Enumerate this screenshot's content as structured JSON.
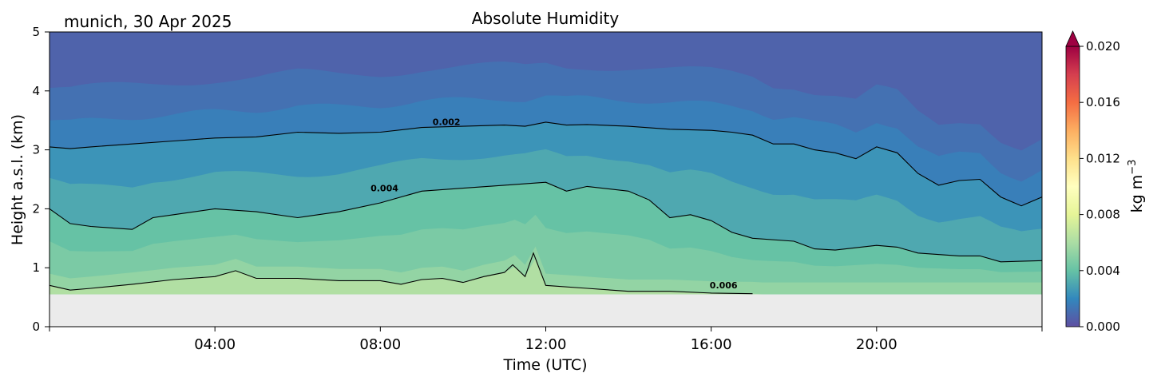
{
  "chart_data": {
    "type": "heatmap",
    "title": "Absolute Humidity",
    "subtitle": "munich, 30 Apr 2025",
    "xlabel": "Time (UTC)",
    "ylabel": "Height a.s.l. (km)",
    "xlim": [
      0,
      24
    ],
    "ylim": [
      0,
      5
    ],
    "x_ticks": [
      {
        "value": 4,
        "label": "04:00"
      },
      {
        "value": 8,
        "label": "08:00"
      },
      {
        "value": 12,
        "label": "12:00"
      },
      {
        "value": 16,
        "label": "16:00"
      },
      {
        "value": 20,
        "label": "20:00"
      }
    ],
    "y_ticks": [
      {
        "value": 0,
        "label": "0"
      },
      {
        "value": 1,
        "label": "1"
      },
      {
        "value": 2,
        "label": "2"
      },
      {
        "value": 3,
        "label": "3"
      },
      {
        "value": 4,
        "label": "4"
      },
      {
        "value": 5,
        "label": "5"
      }
    ],
    "colorbar": {
      "label": "kg m",
      "label_sup": "−3",
      "range": [
        0.0,
        0.02
      ],
      "extend": "max",
      "colormap": "Spectral_r",
      "ticks": [
        {
          "value": 0.0,
          "label": "0.000"
        },
        {
          "value": 0.004,
          "label": "0.004"
        },
        {
          "value": 0.008,
          "label": "0.008"
        },
        {
          "value": 0.012,
          "label": "0.012"
        },
        {
          "value": 0.016,
          "label": "0.016"
        },
        {
          "value": 0.02,
          "label": "0.020"
        }
      ],
      "colors": [
        "#5e4fa2",
        "#3288bd",
        "#66c2a5",
        "#abdda4",
        "#e6f598",
        "#ffffbf",
        "#fee08b",
        "#fdae61",
        "#f46d43",
        "#d53e4f",
        "#9e0142"
      ]
    },
    "no_data_below_km": 0.55,
    "no_data_color": "#ebebeb",
    "contours": [
      {
        "level": 0.002,
        "label": "0.002",
        "label_at": [
          9.6,
          3.42
        ],
        "points": [
          [
            0,
            3.05
          ],
          [
            0.5,
            3.02
          ],
          [
            1,
            3.05
          ],
          [
            2,
            3.1
          ],
          [
            3,
            3.15
          ],
          [
            4,
            3.2
          ],
          [
            5,
            3.22
          ],
          [
            6,
            3.3
          ],
          [
            7,
            3.28
          ],
          [
            8,
            3.3
          ],
          [
            9,
            3.38
          ],
          [
            10,
            3.4
          ],
          [
            11,
            3.42
          ],
          [
            11.5,
            3.4
          ],
          [
            12,
            3.47
          ],
          [
            12.5,
            3.42
          ],
          [
            13,
            3.43
          ],
          [
            14,
            3.4
          ],
          [
            15,
            3.35
          ],
          [
            16,
            3.33
          ],
          [
            16.5,
            3.3
          ],
          [
            17,
            3.25
          ],
          [
            17.5,
            3.1
          ],
          [
            18,
            3.1
          ],
          [
            18.5,
            3.0
          ],
          [
            19,
            2.95
          ],
          [
            19.5,
            2.85
          ],
          [
            20,
            3.05
          ],
          [
            20.5,
            2.95
          ],
          [
            21,
            2.6
          ],
          [
            21.5,
            2.4
          ],
          [
            22,
            2.48
          ],
          [
            22.5,
            2.5
          ],
          [
            23,
            2.2
          ],
          [
            23.5,
            2.05
          ],
          [
            24,
            2.2
          ]
        ]
      },
      {
        "level": 0.004,
        "label": "0.004",
        "label_at": [
          8.1,
          2.3
        ],
        "points": [
          [
            0,
            2.0
          ],
          [
            0.5,
            1.75
          ],
          [
            1,
            1.7
          ],
          [
            2,
            1.65
          ],
          [
            2.5,
            1.85
          ],
          [
            3,
            1.9
          ],
          [
            4,
            2.0
          ],
          [
            5,
            1.95
          ],
          [
            6,
            1.85
          ],
          [
            7,
            1.95
          ],
          [
            8,
            2.1
          ],
          [
            9,
            2.3
          ],
          [
            10,
            2.35
          ],
          [
            11,
            2.4
          ],
          [
            12,
            2.45
          ],
          [
            12.5,
            2.3
          ],
          [
            13,
            2.38
          ],
          [
            14,
            2.3
          ],
          [
            14.5,
            2.15
          ],
          [
            15,
            1.85
          ],
          [
            15.5,
            1.9
          ],
          [
            16,
            1.8
          ],
          [
            16.5,
            1.6
          ],
          [
            17,
            1.5
          ],
          [
            18,
            1.45
          ],
          [
            18.5,
            1.32
          ],
          [
            19,
            1.3
          ],
          [
            20,
            1.38
          ],
          [
            20.5,
            1.35
          ],
          [
            21,
            1.25
          ],
          [
            22,
            1.2
          ],
          [
            22.5,
            1.2
          ],
          [
            23,
            1.1
          ],
          [
            24,
            1.12
          ]
        ]
      },
      {
        "level": 0.006,
        "label": "0.006",
        "label_at": [
          16.3,
          0.65
        ],
        "points": [
          [
            0,
            0.7
          ],
          [
            0.5,
            0.62
          ],
          [
            1,
            0.65
          ],
          [
            2,
            0.72
          ],
          [
            3,
            0.8
          ],
          [
            4,
            0.85
          ],
          [
            4.5,
            0.95
          ],
          [
            5,
            0.82
          ],
          [
            6,
            0.82
          ],
          [
            7,
            0.78
          ],
          [
            8,
            0.78
          ],
          [
            8.5,
            0.72
          ],
          [
            9,
            0.8
          ],
          [
            9.5,
            0.82
          ],
          [
            10,
            0.75
          ],
          [
            10.5,
            0.85
          ],
          [
            11,
            0.92
          ],
          [
            11.2,
            1.05
          ],
          [
            11.5,
            0.85
          ],
          [
            11.7,
            1.25
          ],
          [
            12,
            0.7
          ],
          [
            13,
            0.65
          ],
          [
            14,
            0.6
          ],
          [
            15,
            0.6
          ],
          [
            16,
            0.57
          ],
          [
            17,
            0.56
          ]
        ]
      }
    ]
  }
}
